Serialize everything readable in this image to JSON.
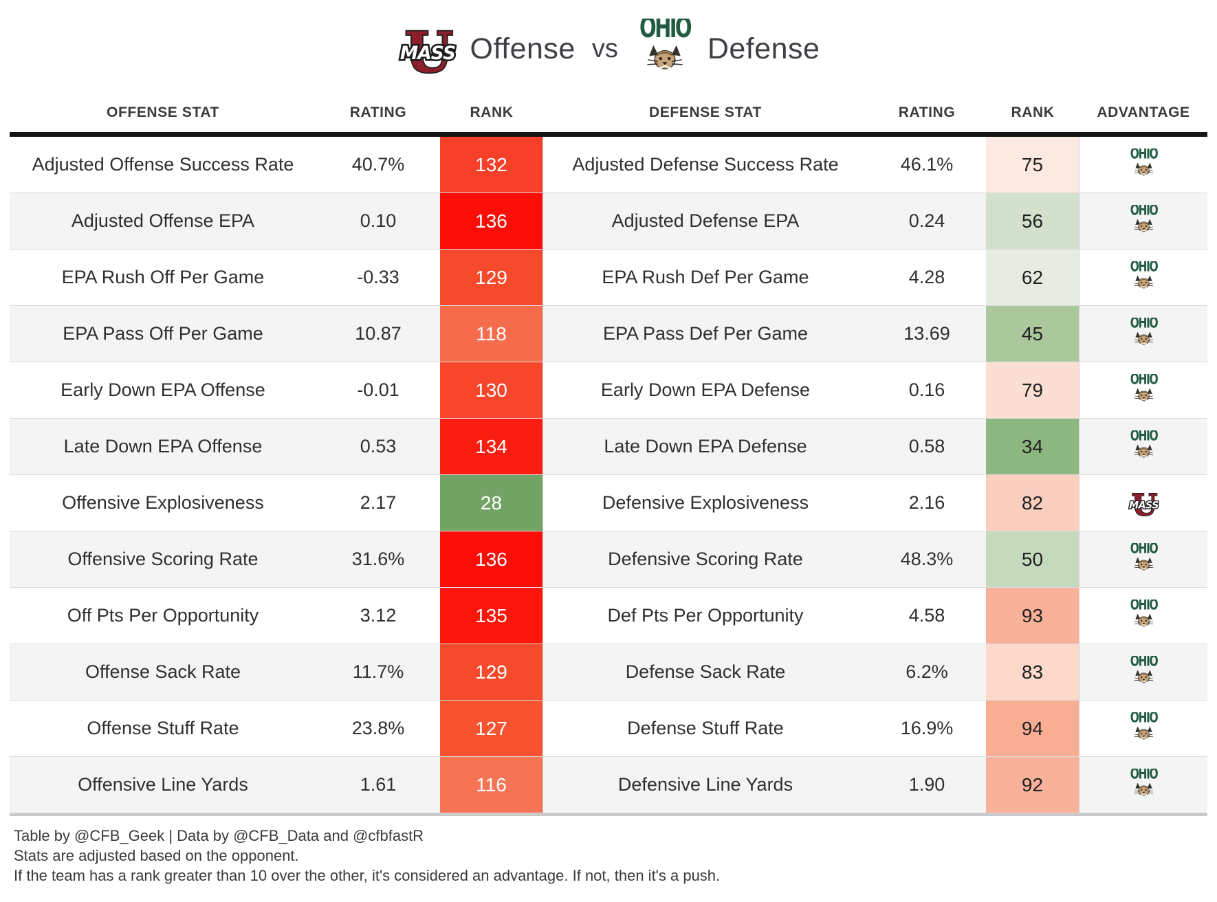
{
  "title": {
    "offense_team": "UMass",
    "offense_label": "Offense",
    "vs_label": "vs",
    "defense_team": "Ohio",
    "defense_label": "Defense"
  },
  "table": {
    "columns": [
      "OFFENSE STAT",
      "RATING",
      "RANK",
      "DEFENSE STAT",
      "RATING",
      "RANK",
      "ADVANTAGE"
    ],
    "rows": [
      {
        "offense_stat": "Adjusted Offense Success Rate",
        "offense_rating": "40.7%",
        "offense_rank": "132",
        "offense_rank_bg": "#f6402a",
        "offense_rank_fg": "#ffffff",
        "defense_stat": "Adjusted Defense Success Rate",
        "defense_rating": "46.1%",
        "defense_rank": "75",
        "defense_rank_bg": "#fce9e1",
        "defense_rank_fg": "#1f1f1f",
        "advantage": "ohio"
      },
      {
        "offense_stat": "Adjusted Offense EPA",
        "offense_rating": "0.10",
        "offense_rank": "136",
        "offense_rank_bg": "#fb0e07",
        "offense_rank_fg": "#ffffff",
        "defense_stat": "Adjusted Defense EPA",
        "defense_rating": "0.24",
        "defense_rank": "56",
        "defense_rank_bg": "#d3e0cc",
        "defense_rank_fg": "#1f1f1f",
        "advantage": "ohio"
      },
      {
        "offense_stat": "EPA Rush Off Per Game",
        "offense_rating": "-0.33",
        "offense_rank": "129",
        "offense_rank_bg": "#f64a2d",
        "offense_rank_fg": "#ffffff",
        "defense_stat": "EPA Rush Def Per Game",
        "defense_rating": "4.28",
        "defense_rank": "62",
        "defense_rank_bg": "#e7ece2",
        "defense_rank_fg": "#1f1f1f",
        "advantage": "ohio"
      },
      {
        "offense_stat": "EPA Pass Off Per Game",
        "offense_rating": "10.87",
        "offense_rank": "118",
        "offense_rank_bg": "#f56c4c",
        "offense_rank_fg": "#ffffff",
        "defense_stat": "EPA Pass Def Per Game",
        "defense_rating": "13.69",
        "defense_rank": "45",
        "defense_rank_bg": "#abc89d",
        "defense_rank_fg": "#1f1f1f",
        "advantage": "ohio"
      },
      {
        "offense_stat": "Early Down EPA Offense",
        "offense_rating": "-0.01",
        "offense_rank": "130",
        "offense_rank_bg": "#f7462b",
        "offense_rank_fg": "#ffffff",
        "defense_stat": "Early Down EPA Defense",
        "defense_rating": "0.16",
        "defense_rank": "79",
        "defense_rank_bg": "#fbded4",
        "defense_rank_fg": "#1f1f1f",
        "advantage": "ohio"
      },
      {
        "offense_stat": "Late Down EPA Offense",
        "offense_rating": "0.53",
        "offense_rank": "134",
        "offense_rank_bg": "#fa1d11",
        "offense_rank_fg": "#ffffff",
        "defense_stat": "Late Down EPA Defense",
        "defense_rating": "0.58",
        "defense_rank": "34",
        "defense_rank_bg": "#8db780",
        "defense_rank_fg": "#1f1f1f",
        "advantage": "ohio"
      },
      {
        "offense_stat": "Offensive Explosiveness",
        "offense_rating": "2.17",
        "offense_rank": "28",
        "offense_rank_bg": "#74a366",
        "offense_rank_fg": "#ffffff",
        "defense_stat": "Defensive Explosiveness",
        "defense_rating": "2.16",
        "defense_rank": "82",
        "defense_rank_bg": "#fbcfc0",
        "defense_rank_fg": "#1f1f1f",
        "advantage": "umass"
      },
      {
        "offense_stat": "Offensive Scoring Rate",
        "offense_rating": "31.6%",
        "offense_rank": "136",
        "offense_rank_bg": "#fb0e07",
        "offense_rank_fg": "#ffffff",
        "defense_stat": "Defensive Scoring Rate",
        "defense_rating": "48.3%",
        "defense_rank": "50",
        "defense_rank_bg": "#c5dabc",
        "defense_rank_fg": "#1f1f1f",
        "advantage": "ohio"
      },
      {
        "offense_stat": "Off Pts Per Opportunity",
        "offense_rating": "3.12",
        "offense_rank": "135",
        "offense_rank_bg": "#fb150b",
        "offense_rank_fg": "#ffffff",
        "defense_stat": "Def Pts Per Opportunity",
        "defense_rating": "4.58",
        "defense_rank": "93",
        "defense_rank_bg": "#f9b199",
        "defense_rank_fg": "#1f1f1f",
        "advantage": "ohio"
      },
      {
        "offense_stat": "Offense Sack Rate",
        "offense_rating": "11.7%",
        "offense_rank": "129",
        "offense_rank_bg": "#f64a2d",
        "offense_rank_fg": "#ffffff",
        "defense_stat": "Defense Sack Rate",
        "defense_rating": "6.2%",
        "defense_rank": "83",
        "defense_rank_bg": "#fcd9cb",
        "defense_rank_fg": "#1f1f1f",
        "advantage": "ohio"
      },
      {
        "offense_stat": "Offense Stuff Rate",
        "offense_rating": "23.8%",
        "offense_rank": "127",
        "offense_rank_bg": "#f75331",
        "offense_rank_fg": "#ffffff",
        "defense_stat": "Defense Stuff Rate",
        "defense_rating": "16.9%",
        "defense_rank": "94",
        "defense_rank_bg": "#f9ae94",
        "defense_rank_fg": "#1f1f1f",
        "advantage": "ohio"
      },
      {
        "offense_stat": "Offensive Line Yards",
        "offense_rating": "1.61",
        "offense_rank": "116",
        "offense_rank_bg": "#f57456",
        "offense_rank_fg": "#ffffff",
        "defense_stat": "Defensive Line Yards",
        "defense_rating": "1.90",
        "defense_rank": "92",
        "defense_rank_bg": "#f9b29a",
        "defense_rank_fg": "#1f1f1f",
        "advantage": "ohio"
      }
    ]
  },
  "chart_data": {
    "type": "table",
    "title": "UMass Offense vs Ohio Defense",
    "columns": [
      "Offense Stat",
      "Rating",
      "Rank",
      "Defense Stat",
      "Rating",
      "Rank",
      "Advantage"
    ],
    "rows": [
      [
        "Adjusted Offense Success Rate",
        "40.7%",
        132,
        "Adjusted Defense Success Rate",
        "46.1%",
        75,
        "Ohio"
      ],
      [
        "Adjusted Offense EPA",
        0.1,
        136,
        "Adjusted Defense EPA",
        0.24,
        56,
        "Ohio"
      ],
      [
        "EPA Rush Off Per Game",
        -0.33,
        129,
        "EPA Rush Def Per Game",
        4.28,
        62,
        "Ohio"
      ],
      [
        "EPA Pass Off Per Game",
        10.87,
        118,
        "EPA Pass Def Per Game",
        13.69,
        45,
        "Ohio"
      ],
      [
        "Early Down EPA Offense",
        -0.01,
        130,
        "Early Down EPA Defense",
        0.16,
        79,
        "Ohio"
      ],
      [
        "Late Down EPA Offense",
        0.53,
        134,
        "Late Down EPA Defense",
        0.58,
        34,
        "Ohio"
      ],
      [
        "Offensive Explosiveness",
        2.17,
        28,
        "Defensive Explosiveness",
        2.16,
        82,
        "UMass"
      ],
      [
        "Offensive Scoring Rate",
        "31.6%",
        136,
        "Defensive Scoring Rate",
        "48.3%",
        50,
        "Ohio"
      ],
      [
        "Off Pts Per Opportunity",
        3.12,
        135,
        "Def Pts Per Opportunity",
        4.58,
        93,
        "Ohio"
      ],
      [
        "Offense Sack Rate",
        "11.7%",
        129,
        "Defense Sack Rate",
        "6.2%",
        83,
        "Ohio"
      ],
      [
        "Offense Stuff Rate",
        "23.8%",
        127,
        "Defense Stuff Rate",
        "16.9%",
        94,
        "Ohio"
      ],
      [
        "Offensive Line Yards",
        1.61,
        116,
        "Defensive Line Yards",
        1.9,
        92,
        "Ohio"
      ]
    ]
  },
  "colors": {
    "umass_maroon": "#8d1f2c",
    "ohio_green": "#215c41",
    "bad_rank_red": "#fb0e07",
    "good_rank_green": "#74a366",
    "header_rule_black": "#151515",
    "alt_row_gray": "#f4f4f5"
  },
  "footer": {
    "lines": [
      "Table by @CFB_Geek | Data by @CFB_Data and @cfbfastR",
      "Stats are adjusted based on the opponent.",
      "If the team has a rank greater than 10 over the other, it's considered an advantage. If not, then it's a push."
    ]
  }
}
